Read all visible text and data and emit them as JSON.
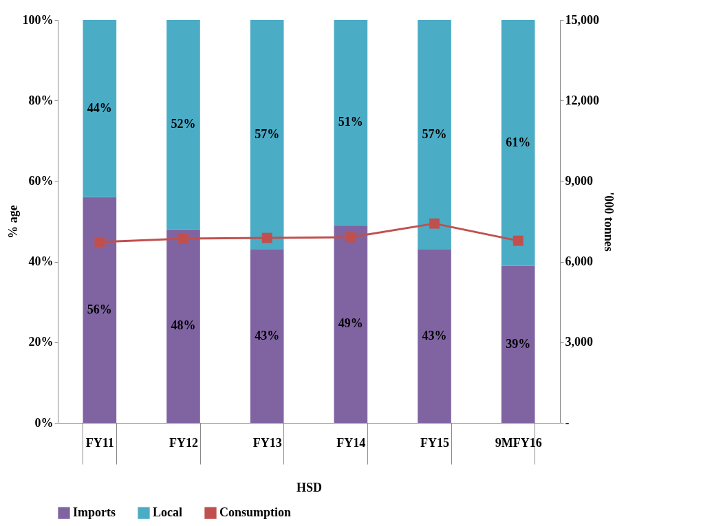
{
  "chart_data": {
    "type": "bar",
    "stacked": true,
    "xlabel": "HSD",
    "ylabel": "%  age",
    "y2label": "'000 tonnes",
    "categories": [
      "FY11",
      "FY12",
      "FY13",
      "FY14",
      "FY15",
      "9MFY16"
    ],
    "series": [
      {
        "name": "Imports",
        "color": "#8064a2",
        "values": [
          56,
          48,
          43,
          49,
          43,
          39
        ],
        "value_labels": [
          "56%",
          "48%",
          "43%",
          "49%",
          "43%",
          "39%"
        ]
      },
      {
        "name": "Local",
        "color": "#4bacc6",
        "values": [
          44,
          52,
          57,
          51,
          57,
          61
        ],
        "value_labels": [
          "44%",
          "52%",
          "57%",
          "51%",
          "57%",
          "61%"
        ]
      },
      {
        "name": "Consumption",
        "type": "line",
        "axis": "y2",
        "color": "#c0504d",
        "values": [
          6730,
          6860,
          6885,
          6910,
          7420,
          6780
        ]
      }
    ],
    "ylim": [
      0,
      100
    ],
    "yticks": [
      {
        "value": 0,
        "label": "0%"
      },
      {
        "value": 20,
        "label": "20%"
      },
      {
        "value": 40,
        "label": "40%"
      },
      {
        "value": 60,
        "label": "60%"
      },
      {
        "value": 80,
        "label": "80%"
      },
      {
        "value": 100,
        "label": "100%"
      }
    ],
    "y2lim": [
      0,
      15000
    ],
    "y2ticks": [
      {
        "value": 0,
        "label": "-"
      },
      {
        "value": 3000,
        "label": "3,000"
      },
      {
        "value": 6000,
        "label": "6,000"
      },
      {
        "value": 9000,
        "label": "9,000"
      },
      {
        "value": 12000,
        "label": "12,000"
      },
      {
        "value": 15000,
        "label": "15,000"
      }
    ],
    "grid": false,
    "legend": "bottom",
    "marker": "square",
    "line_style": "solid"
  }
}
